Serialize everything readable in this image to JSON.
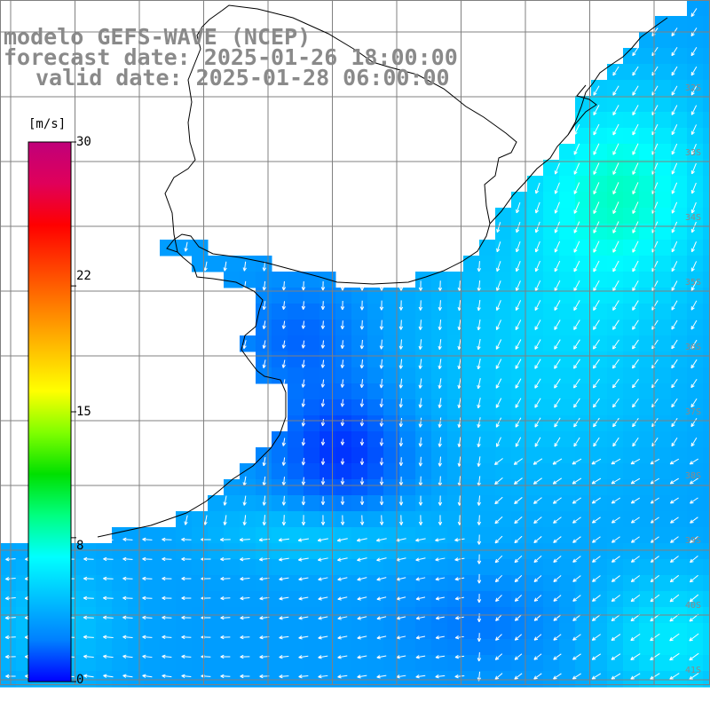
{
  "title": {
    "model": "modelo GEFS-WAVE (NCEP)",
    "forecast": "forecast date: 2025-01-26 18:00:00",
    "valid": "valid date: 2025-01-28 06:00:00"
  },
  "colorbar": {
    "unit": "[m/s]",
    "min": 0,
    "max": 30,
    "ticks": [
      "0",
      "8",
      "15",
      "22",
      "30"
    ],
    "tick_values": [
      0,
      8,
      15,
      22,
      30
    ],
    "colors": [
      "#0000ff",
      "#0080ff",
      "#00c0ff",
      "#00ffff",
      "#00ff80",
      "#00e000",
      "#80ff00",
      "#ffff00",
      "#ffc000",
      "#ff8000",
      "#ff4000",
      "#ff0000",
      "#e0005a",
      "#c0007a"
    ]
  },
  "latitude_labels": [
    "32S",
    "33S",
    "34S",
    "35S",
    "36S",
    "37S",
    "38S",
    "39S",
    "40S",
    "41S"
  ],
  "colors": {
    "land": "#ffffff",
    "coast": "#000000",
    "grid": "#808080",
    "arrows": "#ffffff",
    "label": "#8a8a8a"
  },
  "field": {
    "variable": "wind speed",
    "unit": "m/s",
    "value_range": [
      1,
      10
    ]
  }
}
